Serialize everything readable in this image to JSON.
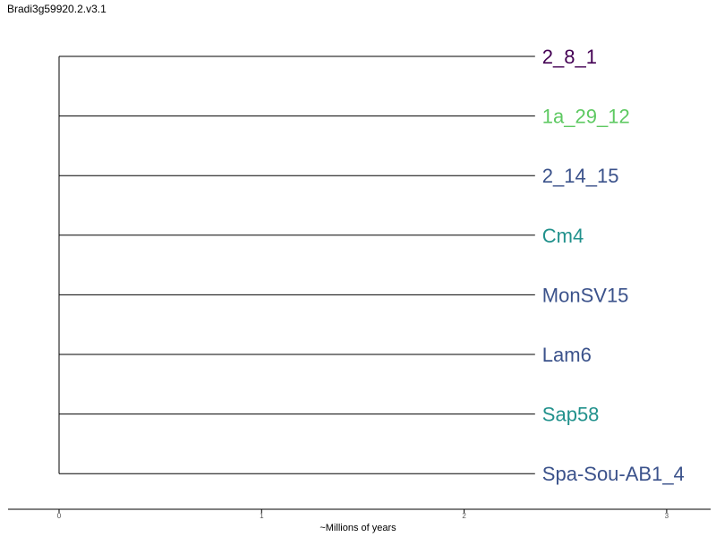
{
  "title": "Bradi3g59920.2.v3.1",
  "tree": {
    "leaves": [
      {
        "name": "2_8_1",
        "color": "#440154"
      },
      {
        "name": "1a_29_12",
        "color": "#5ec962"
      },
      {
        "name": "2_14_15",
        "color": "#3b528b"
      },
      {
        "name": "Cm4",
        "color": "#21918c"
      },
      {
        "name": "MonSV15",
        "color": "#3b528b"
      },
      {
        "name": "Lam6",
        "color": "#3b528b"
      },
      {
        "name": "Sap58",
        "color": "#21918c"
      },
      {
        "name": "Spa-Sou-AB1_4",
        "color": "#3b528b"
      }
    ],
    "branch_length": 2.35
  },
  "axis": {
    "label": "~Millions of years",
    "ticks": [
      0,
      1,
      2,
      3
    ],
    "range": [
      -0.25,
      3.2
    ]
  }
}
